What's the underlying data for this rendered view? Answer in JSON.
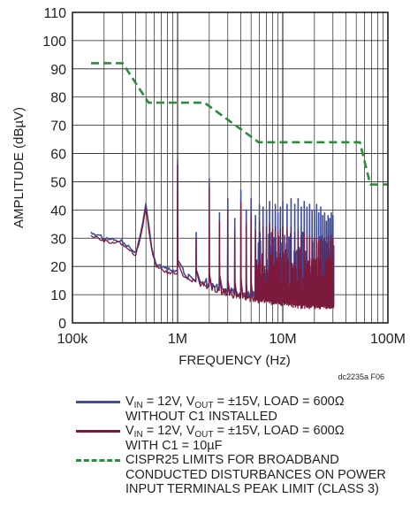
{
  "chart_data": {
    "type": "line",
    "title": "",
    "figure_id": "dc2235a F06",
    "xlabel": "FREQUENCY (Hz)",
    "ylabel": "AMPLITUDE (dBµV)",
    "x_scale": "log",
    "xlim": [
      100000,
      100000000
    ],
    "ylim": [
      0,
      110
    ],
    "x_ticks": [
      {
        "value": 100000,
        "label": "100k"
      },
      {
        "value": 1000000,
        "label": "1M"
      },
      {
        "value": 10000000,
        "label": "10M"
      },
      {
        "value": 100000000,
        "label": "100M"
      }
    ],
    "y_ticks": [
      0,
      10,
      20,
      30,
      40,
      50,
      60,
      70,
      80,
      90,
      100,
      110
    ],
    "y_tick_labels": [
      "0",
      "10",
      "20",
      "30",
      "40",
      "50",
      "60",
      "70",
      "80",
      "90",
      "100",
      "110"
    ],
    "grid": true,
    "legend_position": "bottom",
    "series": [
      {
        "color": "#3f4d9b",
        "style": "solid",
        "legend_parts": [
          "V",
          "IN",
          " = 12V, V",
          "OUT",
          " = ±15V, LOAD = 600Ω"
        ],
        "legend_line2": "WITHOUT C1 INSTALLED",
        "baseline": [
          [
            150000,
            32
          ],
          [
            200000,
            30
          ],
          [
            300000,
            29
          ],
          [
            400000,
            25
          ],
          [
            450000,
            32
          ],
          [
            500000,
            42
          ],
          [
            560000,
            28
          ],
          [
            620000,
            21
          ],
          [
            800000,
            19
          ],
          [
            1000000,
            18
          ],
          [
            1300000,
            15
          ],
          [
            1800000,
            13
          ],
          [
            2500000,
            11
          ],
          [
            4000000,
            9
          ],
          [
            6000000,
            8
          ],
          [
            10000000,
            7
          ],
          [
            15000000,
            6
          ],
          [
            22000000,
            6
          ],
          [
            30000000,
            6
          ]
        ],
        "spikes": [
          [
            1000000,
            58
          ],
          [
            1500000,
            32
          ],
          [
            2000000,
            51
          ],
          [
            2500000,
            39
          ],
          [
            3000000,
            44
          ],
          [
            3500000,
            37
          ],
          [
            4000000,
            47
          ],
          [
            4500000,
            40
          ],
          [
            5000000,
            44
          ],
          [
            5500000,
            38
          ],
          [
            6000000,
            42
          ],
          [
            6500000,
            41
          ],
          [
            7000000,
            40
          ],
          [
            7500000,
            43
          ],
          [
            8000000,
            40
          ],
          [
            8500000,
            42
          ],
          [
            9000000,
            39
          ],
          [
            9500000,
            41
          ],
          [
            10000000,
            43
          ],
          [
            11000000,
            42
          ],
          [
            12000000,
            44
          ],
          [
            13000000,
            42
          ],
          [
            14000000,
            44
          ],
          [
            15000000,
            41
          ],
          [
            16000000,
            43
          ],
          [
            17000000,
            41
          ],
          [
            18000000,
            42
          ],
          [
            19000000,
            40
          ],
          [
            20000000,
            40
          ],
          [
            21000000,
            42
          ],
          [
            22000000,
            39
          ],
          [
            23000000,
            41
          ],
          [
            24000000,
            38
          ],
          [
            25000000,
            39
          ],
          [
            26000000,
            36
          ],
          [
            27000000,
            38
          ],
          [
            28000000,
            37
          ],
          [
            29000000,
            39
          ],
          [
            30000000,
            38
          ]
        ]
      },
      {
        "color": "#7b1a3c",
        "style": "solid",
        "legend_parts": [
          "V",
          "IN",
          " = 12V, V",
          "OUT",
          " = ±15V, LOAD = 600Ω"
        ],
        "legend_line2": "WITH C1 = 10µF",
        "baseline": [
          [
            150000,
            31
          ],
          [
            200000,
            29
          ],
          [
            300000,
            28
          ],
          [
            400000,
            24
          ],
          [
            450000,
            31
          ],
          [
            500000,
            41
          ],
          [
            560000,
            27
          ],
          [
            620000,
            20
          ],
          [
            800000,
            18
          ],
          [
            1000000,
            17
          ],
          [
            1300000,
            14
          ],
          [
            1800000,
            12
          ],
          [
            2500000,
            10
          ],
          [
            4000000,
            8
          ],
          [
            6000000,
            7
          ],
          [
            10000000,
            6
          ],
          [
            15000000,
            5
          ],
          [
            22000000,
            5
          ],
          [
            30000000,
            5
          ]
        ],
        "spikes": [
          [
            1000000,
            56
          ],
          [
            1500000,
            30
          ],
          [
            2000000,
            48
          ],
          [
            2500000,
            36
          ],
          [
            3000000,
            40
          ],
          [
            3500000,
            33
          ],
          [
            4000000,
            43
          ],
          [
            4500000,
            35
          ],
          [
            5000000,
            38
          ],
          [
            5500000,
            33
          ],
          [
            6000000,
            36
          ],
          [
            6500000,
            34
          ],
          [
            7000000,
            34
          ],
          [
            7500000,
            35
          ],
          [
            8000000,
            33
          ],
          [
            8500000,
            34
          ],
          [
            9000000,
            32
          ],
          [
            9500000,
            33
          ],
          [
            10000000,
            34
          ],
          [
            11000000,
            33
          ],
          [
            12000000,
            34
          ],
          [
            13000000,
            32
          ],
          [
            14000000,
            33
          ],
          [
            15000000,
            31
          ],
          [
            16000000,
            32
          ],
          [
            17000000,
            30
          ],
          [
            18000000,
            31
          ],
          [
            19000000,
            29
          ],
          [
            20000000,
            30
          ],
          [
            21000000,
            30
          ],
          [
            22000000,
            29
          ],
          [
            23000000,
            30
          ],
          [
            24000000,
            29
          ],
          [
            25000000,
            30
          ],
          [
            26000000,
            28
          ],
          [
            27000000,
            31
          ],
          [
            28000000,
            29
          ],
          [
            29000000,
            31
          ],
          [
            30000000,
            30
          ]
        ]
      },
      {
        "color": "#2e8b3e",
        "style": "dashed",
        "legend_lines": [
          "CISPR25 LIMITS FOR BROADBAND",
          "CONDUCTED DISTURBANCES ON POWER",
          "INPUT TERMINALS PEAK LIMIT (CLASS 3)"
        ],
        "points": [
          [
            150000,
            92
          ],
          [
            300000,
            92
          ],
          [
            530000,
            78
          ],
          [
            1800000,
            78
          ],
          [
            5900000,
            64
          ],
          [
            54000000,
            64
          ],
          [
            68000000,
            49
          ],
          [
            100000000,
            49
          ]
        ]
      }
    ]
  }
}
